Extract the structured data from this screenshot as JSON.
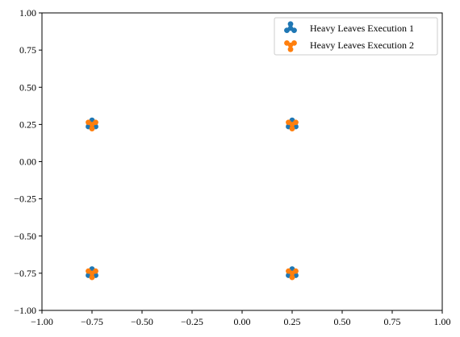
{
  "chart_data": {
    "type": "scatter",
    "xlim": [
      -1.0,
      1.0
    ],
    "ylim": [
      -1.0,
      1.0
    ],
    "xticks": [
      "−1.00",
      "−0.75",
      "−0.50",
      "−0.25",
      "0.00",
      "0.25",
      "0.50",
      "0.75",
      "1.00"
    ],
    "xtick_values": [
      -1.0,
      -0.75,
      -0.5,
      -0.25,
      0.0,
      0.25,
      0.5,
      0.75,
      1.0
    ],
    "yticks": [
      "−1.00",
      "−0.75",
      "−0.50",
      "−0.25",
      "0.00",
      "0.25",
      "0.50",
      "0.75",
      "1.00"
    ],
    "ytick_values": [
      -1.0,
      -0.75,
      -0.5,
      -0.25,
      0.0,
      0.25,
      0.5,
      0.75,
      1.0
    ],
    "grid": false,
    "legend_position": "top-right",
    "series": [
      {
        "name": "Heavy Leaves Execution 1",
        "color": "#1f77b4",
        "marker": "tri-up",
        "points": [
          [
            -0.75,
            0.25
          ],
          [
            0.25,
            0.25
          ],
          [
            -0.75,
            -0.75
          ],
          [
            0.25,
            -0.75
          ]
        ]
      },
      {
        "name": "Heavy Leaves Execution 2",
        "color": "#ff7f0e",
        "marker": "tri-down",
        "points": [
          [
            -0.75,
            0.25
          ],
          [
            0.25,
            0.25
          ],
          [
            -0.75,
            -0.75
          ],
          [
            0.25,
            -0.75
          ]
        ]
      }
    ]
  }
}
